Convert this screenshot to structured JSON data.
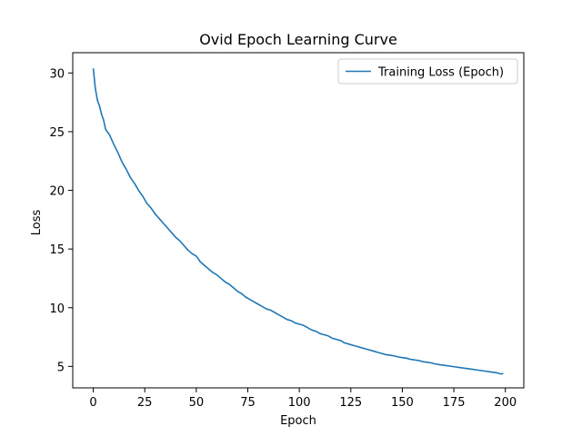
{
  "chart_data": {
    "type": "line",
    "title": "Ovid Epoch Learning Curve",
    "xlabel": "Epoch",
    "ylabel": "Loss",
    "xlim": [
      -9.95,
      208.95
    ],
    "ylim": [
      3.17,
      31.73
    ],
    "x_ticks": [
      0,
      25,
      50,
      75,
      100,
      125,
      150,
      175,
      200
    ],
    "y_ticks": [
      5,
      10,
      15,
      20,
      25,
      30
    ],
    "grid": false,
    "legend_position": "top-right",
    "series": [
      {
        "name": "Training Loss (Epoch)",
        "color": "#1f77b4",
        "x": [
          0,
          1,
          2,
          3,
          4,
          5,
          6,
          8,
          10,
          12,
          14,
          16,
          18,
          20,
          22,
          24,
          26,
          28,
          30,
          32,
          34,
          36,
          38,
          40,
          42,
          44,
          46,
          48,
          50,
          52,
          54,
          56,
          58,
          60,
          62,
          64,
          66,
          68,
          70,
          72,
          74,
          76,
          78,
          80,
          82,
          84,
          86,
          88,
          90,
          92,
          94,
          96,
          98,
          100,
          102,
          104,
          106,
          108,
          110,
          112,
          114,
          116,
          118,
          120,
          122,
          124,
          126,
          128,
          130,
          132,
          134,
          136,
          138,
          140,
          142,
          144,
          146,
          148,
          150,
          152,
          154,
          156,
          158,
          160,
          162,
          164,
          166,
          168,
          170,
          172,
          174,
          176,
          178,
          180,
          182,
          184,
          186,
          188,
          190,
          192,
          194,
          196,
          198,
          199
        ],
        "values": [
          30.4,
          28.7,
          27.7,
          27.2,
          26.5,
          26.0,
          25.2,
          24.7,
          23.9,
          23.2,
          22.4,
          21.8,
          21.1,
          20.6,
          20.0,
          19.5,
          18.9,
          18.5,
          18.0,
          17.6,
          17.2,
          16.8,
          16.4,
          16.0,
          15.7,
          15.3,
          14.9,
          14.6,
          14.4,
          13.9,
          13.6,
          13.3,
          13.0,
          12.8,
          12.5,
          12.2,
          12.0,
          11.7,
          11.4,
          11.2,
          10.9,
          10.7,
          10.5,
          10.3,
          10.1,
          9.9,
          9.8,
          9.6,
          9.4,
          9.2,
          9.0,
          8.9,
          8.7,
          8.6,
          8.5,
          8.3,
          8.1,
          8.0,
          7.8,
          7.7,
          7.6,
          7.4,
          7.3,
          7.2,
          7.0,
          6.9,
          6.8,
          6.7,
          6.6,
          6.5,
          6.4,
          6.3,
          6.2,
          6.1,
          6.0,
          5.95,
          5.9,
          5.8,
          5.75,
          5.7,
          5.6,
          5.55,
          5.5,
          5.4,
          5.35,
          5.3,
          5.2,
          5.15,
          5.1,
          5.05,
          5.0,
          4.95,
          4.9,
          4.85,
          4.8,
          4.75,
          4.7,
          4.65,
          4.6,
          4.55,
          4.5,
          4.45,
          4.35,
          4.4
        ]
      }
    ]
  }
}
